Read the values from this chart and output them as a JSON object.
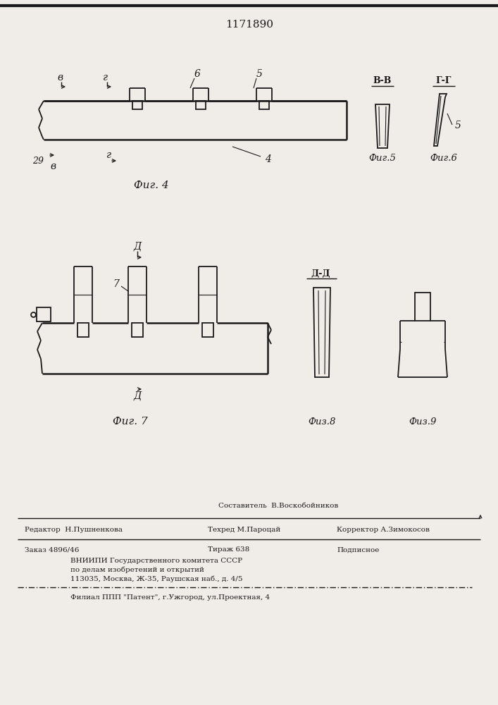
{
  "title": "1171890",
  "bg_color": "#f0ede8",
  "line_color": "#1a1a1a",
  "fig4_caption": "Фиг. 4",
  "fig5_caption": "Фиг.5",
  "fig6_caption": "Фиг.6",
  "fig7_caption": "Фиг. 7",
  "fig8_caption": "Физ.8",
  "fig9_caption": "Физ.9",
  "footer_sostavitel": "Составитель  В.Воскобойников",
  "footer_editor": "Редактор  Н.Пушненкова",
  "footer_tehred": "Техред М.Пароцай",
  "footer_korrektor": "Корректор А.Зимокосов",
  "footer_zakaz": "Заказ 4896/46",
  "footer_tirazh": "Тираж 638",
  "footer_podpisnoe": "Подписное",
  "footer_vniip1": "ВНИИПИ Государственного комитета СССР",
  "footer_vniip2": "по делам изобретений и открытий",
  "footer_vniip3": "113035, Москва, Ж-35, Раушская наб., д. 4/5",
  "footer_filial": "Филиал ППП \"Патент\", г.Ужгород, ул.Проектная, 4"
}
